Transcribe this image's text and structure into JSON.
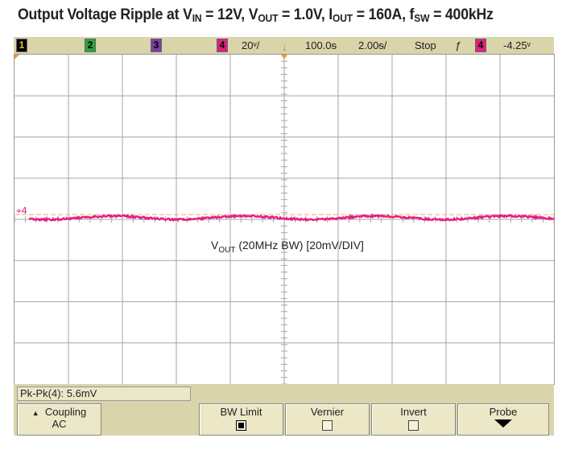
{
  "title": {
    "p1": "Output Voltage Ripple at V",
    "s1": "IN",
    "p2": " = 12V, V",
    "s2": "OUT",
    "p3": " = 1.0V, I",
    "s3": "OUT",
    "p4": " = 160A, f",
    "s4": "SW",
    "p5": " = 400kHz"
  },
  "status_bar": {
    "channels": [
      {
        "label": "1",
        "color": "#e6c619"
      },
      {
        "label": "2",
        "color": "#2aa33a"
      },
      {
        "label": "3",
        "color": "#7b3fa2"
      },
      {
        "label": "4",
        "color": "#e0207c"
      }
    ],
    "active_channel": "4",
    "volts_div": "20ᵛ/",
    "trigger_icon": "↓",
    "time_pos": "100.0ᵴ",
    "time_div": "2.00ᵴ/",
    "run_state": "Stop",
    "trigger_slope": "ƒ",
    "trig_level": "-4.25ᵛ"
  },
  "trace": {
    "color": "#e41f84",
    "channel_marker": "4",
    "label_main": "V",
    "label_sub": "OUT",
    "label_rest": " (20MHz BW) [20mV/DIV]"
  },
  "measurement": "Pk-Pk(4): 5.6mV",
  "softkeys": [
    {
      "label1": "Coupling",
      "label2": "AC",
      "type": "menu"
    },
    {
      "label1": "BW Limit",
      "type": "checkbox",
      "checked": true
    },
    {
      "label1": "Vernier",
      "type": "checkbox",
      "checked": false
    },
    {
      "label1": "Invert",
      "type": "checkbox",
      "checked": false
    },
    {
      "label1": "Probe",
      "type": "submenu"
    }
  ],
  "colors": {
    "grid": "#a6a6a6",
    "panel": "#d9d4aa",
    "trace": "#e41f84",
    "ref_line": "#f0a860"
  }
}
